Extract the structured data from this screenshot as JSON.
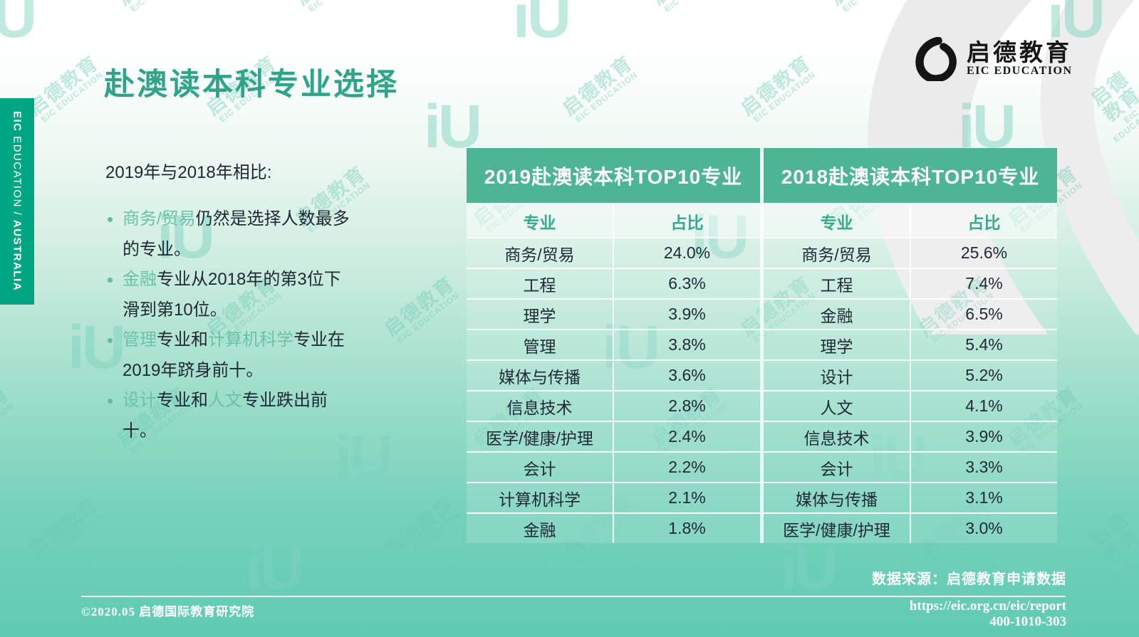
{
  "title": "赴澳读本科专业选择",
  "sidebar": {
    "brand_bold": "EIC",
    "brand_rest": " EDUCATION ",
    "separator": "/ ",
    "region": "AUSTRALIA"
  },
  "logo": {
    "cn": "启德教育",
    "en": "EIC EDUCATION"
  },
  "intro": {
    "heading": "2019年与2018年相比:",
    "bullets": [
      [
        {
          "t": "商务/贸易",
          "h": true
        },
        {
          "t": "仍然是选择人数最多的专业。",
          "h": false
        }
      ],
      [
        {
          "t": "金融",
          "h": true
        },
        {
          "t": "专业从2018年的第3位下滑到第10位。",
          "h": false
        }
      ],
      [
        {
          "t": "管理",
          "h": true
        },
        {
          "t": "专业和",
          "h": false
        },
        {
          "t": "计算机科学",
          "h": true
        },
        {
          "t": "专业在2019年跻身前十。",
          "h": false
        }
      ],
      [
        {
          "t": "设计",
          "h": true
        },
        {
          "t": "专业和",
          "h": false
        },
        {
          "t": "人文",
          "h": true
        },
        {
          "t": "专业跌出前十。",
          "h": false
        }
      ]
    ]
  },
  "tables": [
    {
      "title": "2019赴澳读本科TOP10专业",
      "col_major": "专业",
      "col_share": "占比",
      "rows": [
        [
          "商务/贸易",
          "24.0%"
        ],
        [
          "工程",
          "6.3%"
        ],
        [
          "理学",
          "3.9%"
        ],
        [
          "管理",
          "3.8%"
        ],
        [
          "媒体与传播",
          "3.6%"
        ],
        [
          "信息技术",
          "2.8%"
        ],
        [
          "医学/健康/护理",
          "2.4%"
        ],
        [
          "会计",
          "2.2%"
        ],
        [
          "计算机科学",
          "2.1%"
        ],
        [
          "金融",
          "1.8%"
        ]
      ]
    },
    {
      "title": "2018赴澳读本科TOP10专业",
      "col_major": "专业",
      "col_share": "占比",
      "rows": [
        [
          "商务/贸易",
          "25.6%"
        ],
        [
          "工程",
          "7.4%"
        ],
        [
          "金融",
          "6.5%"
        ],
        [
          "理学",
          "5.4%"
        ],
        [
          "设计",
          "5.2%"
        ],
        [
          "人文",
          "4.1%"
        ],
        [
          "信息技术",
          "3.9%"
        ],
        [
          "会计",
          "3.3%"
        ],
        [
          "媒体与传播",
          "3.1%"
        ],
        [
          "医学/健康/护理",
          "3.0%"
        ]
      ]
    }
  ],
  "footer": {
    "copyright": "©2020.05 启德国际教育研究院",
    "source": "数据来源：启德教育申请数据",
    "url": "https://eic.org.cn/eic/report",
    "phone": "400-1010-303"
  },
  "watermark": {
    "cn": "启德教育",
    "en": "EIC EDUCATION",
    "mark": "iU"
  },
  "colors": {
    "accent_green": "#2ea488",
    "table_header_green": "#4db596",
    "sidebar_green": "#00a583",
    "highlight_green": "#69c2aa",
    "bottom_teal": "#60cbb2",
    "swoosh_gray": "#ebebeb"
  }
}
